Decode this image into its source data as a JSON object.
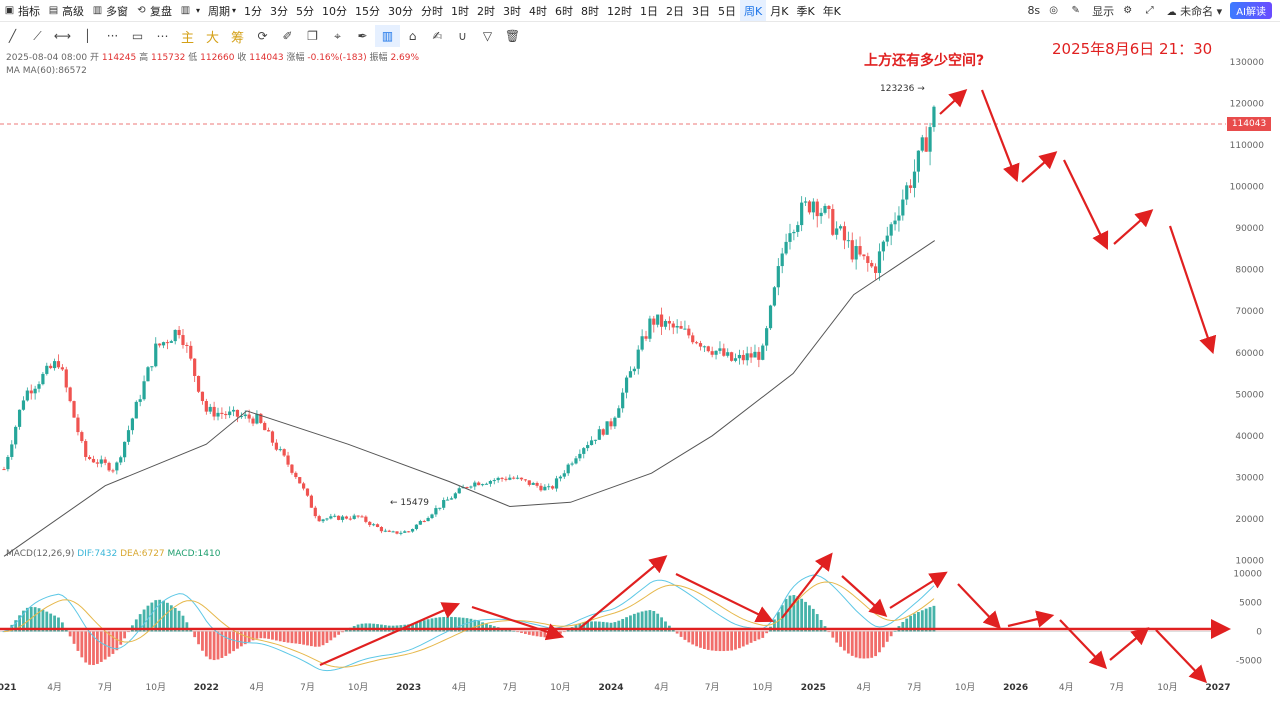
{
  "toolbar": {
    "items": [
      {
        "icon": "indicator-icon",
        "label": "指标"
      },
      {
        "icon": "calendar-icon",
        "label": "高级"
      },
      {
        "icon": "multi-window-icon",
        "label": "多窗"
      },
      {
        "icon": "replay-icon",
        "label": "复盘"
      },
      {
        "icon": "bar-chart-icon",
        "label": ""
      },
      {
        "icon": "period-icon",
        "label": "周期"
      }
    ],
    "periods": [
      "1分",
      "3分",
      "5分",
      "10分",
      "15分",
      "30分",
      "分时",
      "1时",
      "2时",
      "3时",
      "4时",
      "6时",
      "8时",
      "12时",
      "1日",
      "2日",
      "3日",
      "5日",
      "周K",
      "月K",
      "季K",
      "年K"
    ],
    "active_period": "周K",
    "right": {
      "refresh": "8s",
      "display": "显示",
      "unnamed": "未命名",
      "ai": "AI解读"
    }
  },
  "drawing_tools": {
    "labels": [
      "主",
      "大",
      "筹"
    ]
  },
  "info": {
    "line1": {
      "date": "2025-08-04 08:00",
      "open_label": "开",
      "open": "114245",
      "high_label": "高",
      "high": "115732",
      "low_label": "低",
      "low": "112660",
      "close_label": "收",
      "close": "114043",
      "change_label": "涨幅",
      "change": "-0.16%(-183)",
      "amp_label": "振幅",
      "amp": "2.69%"
    },
    "ma": {
      "label": "MA",
      "value": "MA(60):86572"
    }
  },
  "macd_info": {
    "label": "MACD(12,26,9)",
    "dif": "DIF:7432",
    "dea": "DEA:6727",
    "macd": "MACD:1410"
  },
  "annotations": {
    "question": "上方还有多少空间?",
    "datetime": "2025年8月6日 21：30",
    "high_marker": "123236",
    "low_marker": "15479"
  },
  "current_price_tag": "114043",
  "colors": {
    "up": "#26a69a",
    "down": "#ef5350",
    "ma_line": "#555555",
    "dif_line": "#5ec8e6",
    "dea_line": "#e6b84c",
    "annotation": "#e02020",
    "price_tag": "#e84c4c"
  },
  "chart_data": {
    "type": "candlestick",
    "timeframe": "weekly",
    "price_axis": {
      "ticks": [
        10000,
        20000,
        30000,
        40000,
        50000,
        60000,
        70000,
        80000,
        90000,
        100000,
        110000,
        120000,
        130000
      ],
      "range": [
        0,
        130000
      ]
    },
    "time_axis": {
      "ticks": [
        "2021",
        "4月",
        "7月",
        "10月",
        "2022",
        "4月",
        "7月",
        "10月",
        "2023",
        "4月",
        "7月",
        "10月",
        "2024",
        "4月",
        "7月",
        "10月",
        "2025",
        "4月",
        "7月",
        "10月",
        "2026",
        "4月",
        "7月",
        "10月",
        "2027"
      ]
    },
    "price_path": [
      {
        "t": 2021.0,
        "p": 32000
      },
      {
        "t": 2021.1,
        "p": 50000
      },
      {
        "t": 2021.27,
        "p": 58000
      },
      {
        "t": 2021.4,
        "p": 35000
      },
      {
        "t": 2021.55,
        "p": 32000
      },
      {
        "t": 2021.75,
        "p": 61000
      },
      {
        "t": 2021.87,
        "p": 66000
      },
      {
        "t": 2022.0,
        "p": 46000
      },
      {
        "t": 2022.25,
        "p": 44000
      },
      {
        "t": 2022.45,
        "p": 30000
      },
      {
        "t": 2022.55,
        "p": 20000
      },
      {
        "t": 2022.75,
        "p": 20500
      },
      {
        "t": 2022.9,
        "p": 16500
      },
      {
        "t": 2023.0,
        "p": 17000
      },
      {
        "t": 2023.15,
        "p": 23000
      },
      {
        "t": 2023.3,
        "p": 28500
      },
      {
        "t": 2023.5,
        "p": 30000
      },
      {
        "t": 2023.7,
        "p": 27000
      },
      {
        "t": 2023.85,
        "p": 37000
      },
      {
        "t": 2024.0,
        "p": 43000
      },
      {
        "t": 2024.2,
        "p": 68000
      },
      {
        "t": 2024.4,
        "p": 64000
      },
      {
        "t": 2024.6,
        "p": 58000
      },
      {
        "t": 2024.75,
        "p": 60000
      },
      {
        "t": 2024.87,
        "p": 90000
      },
      {
        "t": 2025.0,
        "p": 97000
      },
      {
        "t": 2025.2,
        "p": 84000
      },
      {
        "t": 2025.3,
        "p": 80000
      },
      {
        "t": 2025.42,
        "p": 95000
      },
      {
        "t": 2025.52,
        "p": 106000
      },
      {
        "t": 2025.6,
        "p": 118000
      },
      {
        "t": 2025.6,
        "p": 114043
      }
    ],
    "ma60": {
      "label": "MA(60)",
      "points": [
        {
          "t": 2021.0,
          "p": 11000
        },
        {
          "t": 2021.5,
          "p": 28000
        },
        {
          "t": 2022.0,
          "p": 38000
        },
        {
          "t": 2022.2,
          "p": 46000
        },
        {
          "t": 2022.7,
          "p": 38000
        },
        {
          "t": 2023.2,
          "p": 29000
        },
        {
          "t": 2023.5,
          "p": 23000
        },
        {
          "t": 2023.8,
          "p": 24000
        },
        {
          "t": 2024.2,
          "p": 31000
        },
        {
          "t": 2024.5,
          "p": 40000
        },
        {
          "t": 2024.9,
          "p": 55000
        },
        {
          "t": 2025.2,
          "p": 74000
        },
        {
          "t": 2025.6,
          "p": 87000
        }
      ]
    },
    "macd": {
      "axis_ticks": [
        -5000,
        0,
        5000,
        10000
      ],
      "series": [
        {
          "name": "DIF",
          "last": 7432
        },
        {
          "name": "DEA",
          "last": 6727
        },
        {
          "name": "MACD",
          "last": 1410
        }
      ]
    }
  }
}
